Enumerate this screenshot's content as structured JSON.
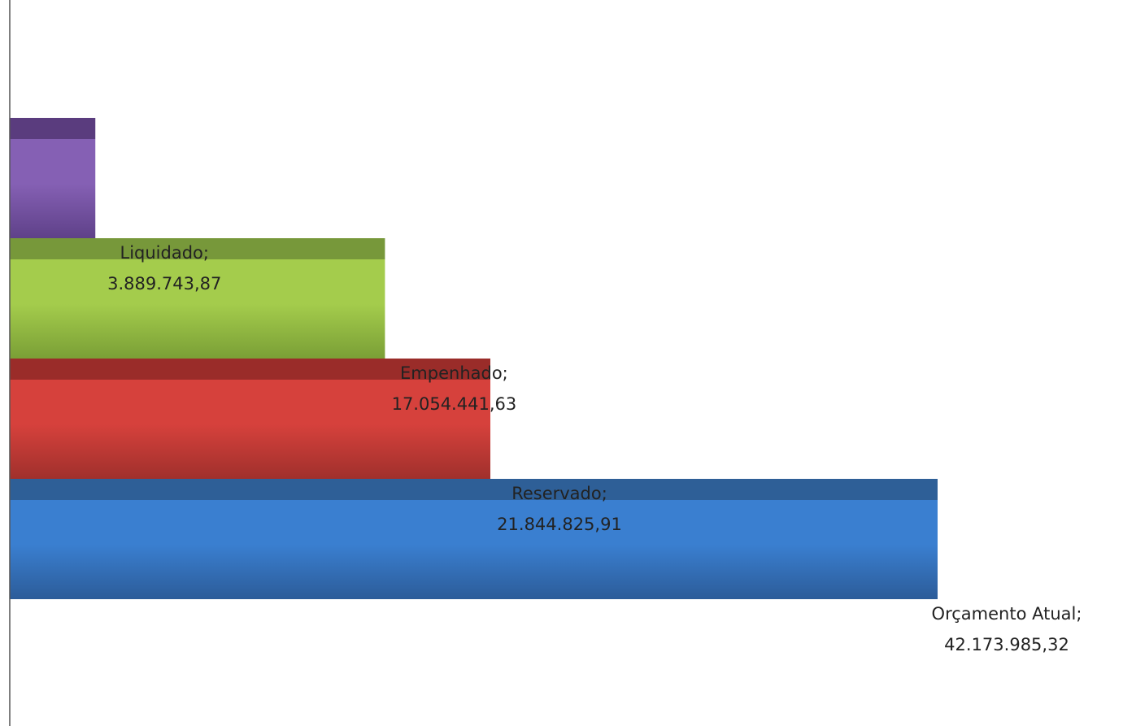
{
  "chart_data": {
    "type": "bar",
    "orientation": "horizontal",
    "style": "3d-stacked-steps",
    "title": "",
    "xlabel": "",
    "ylabel": "",
    "xlim": [
      0,
      42173985.32
    ],
    "grid": false,
    "legend": "none",
    "categories": [
      "Orçamento Atual",
      "Reservado",
      "Empenhado",
      "Liquidado"
    ],
    "values": [
      42173985.32,
      21844825.91,
      17054441.63,
      3889743.87
    ],
    "data_labels": [
      {
        "name": "Orçamento Atual;",
        "value": "42.173.985,32"
      },
      {
        "name": "Reservado;",
        "value": "21.844.825,91"
      },
      {
        "name": "Empenhado;",
        "value": "17.054.441,63"
      },
      {
        "name": "Liquidado;",
        "value": "3.889.743,87"
      }
    ],
    "colors": {
      "Orçamento Atual": {
        "top": "#3a7fd0",
        "bottom": "#2c5c99",
        "cap": "#2e5f97"
      },
      "Reservado": {
        "top": "#d6413c",
        "bottom": "#a0302c",
        "cap": "#9a2c29"
      },
      "Empenhado": {
        "top": "#a4cc4c",
        "bottom": "#7a9f36",
        "cap": "#77983a"
      },
      "Liquidado": {
        "top": "#8560b4",
        "bottom": "#5f4189",
        "cap": "#5a3c7e"
      }
    },
    "axis_color": "#555555"
  }
}
